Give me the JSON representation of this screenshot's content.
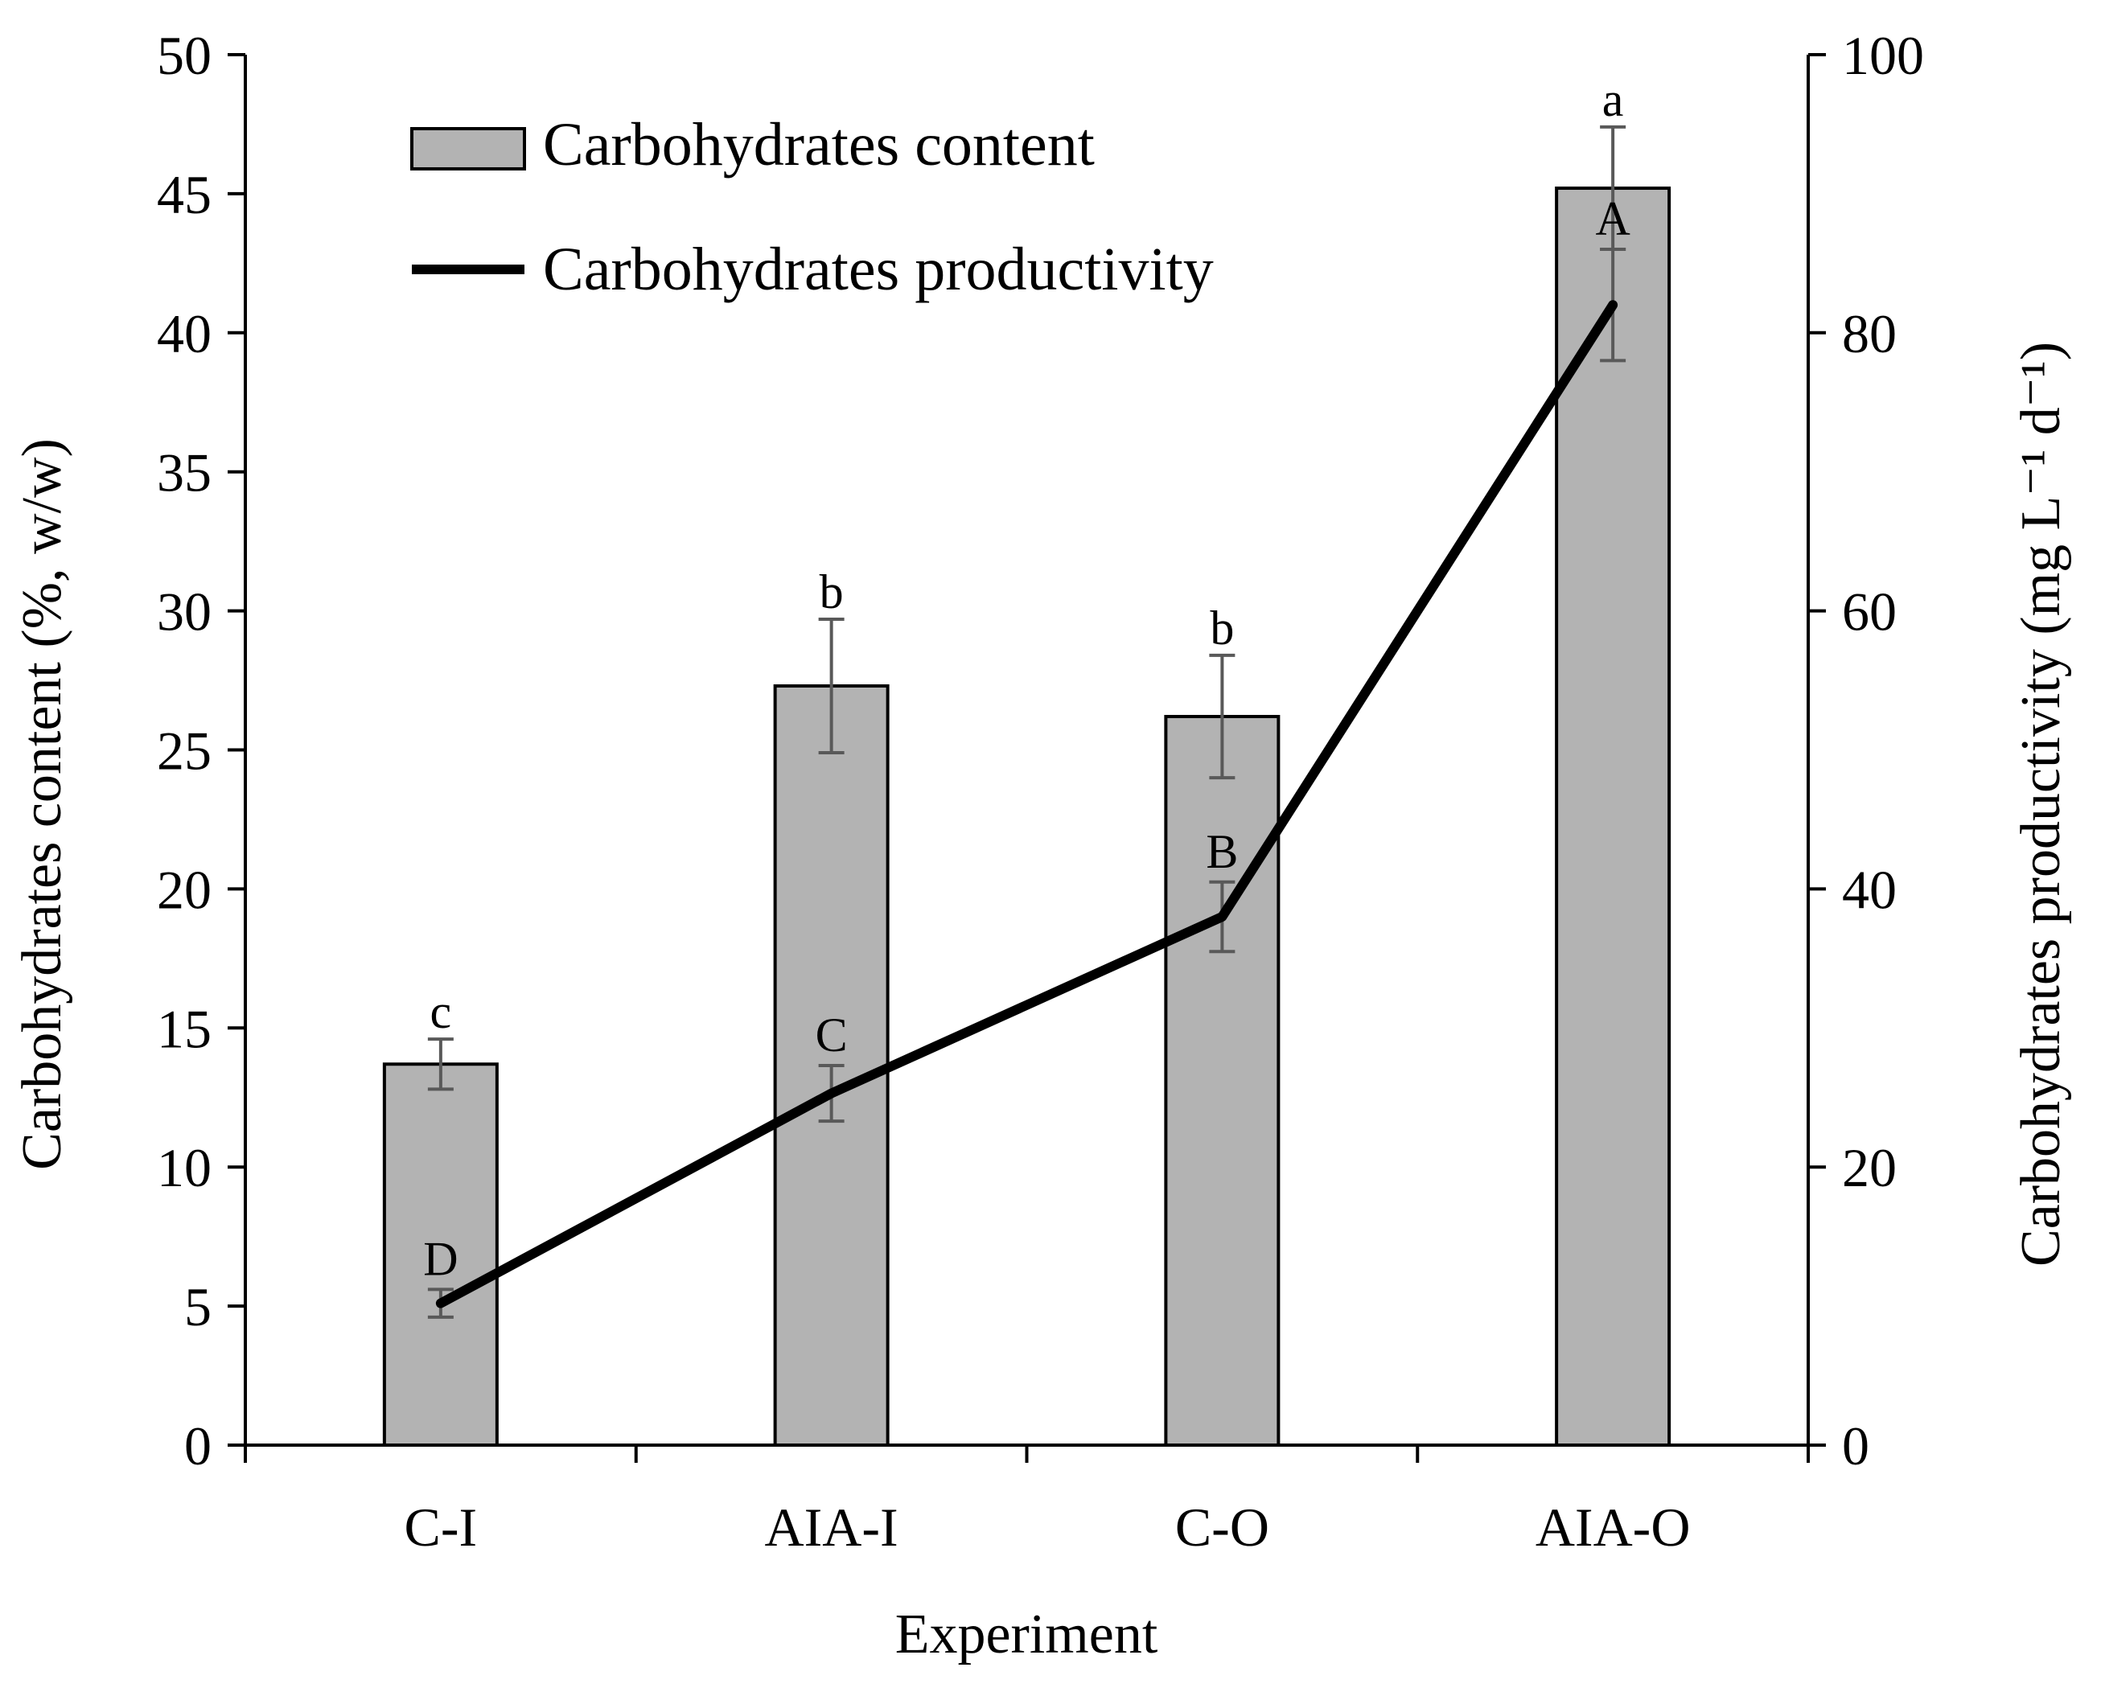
{
  "chart_data": {
    "type": "bar",
    "categories": [
      "C-I",
      "AIA-I",
      "C-O",
      "AIA-O"
    ],
    "xlabel": "Experiment",
    "ylabel": "Carbohydrates content (%, w/w)",
    "y2label": "Carbohydrates  productivity (mg L⁻¹ d⁻¹)",
    "ylim": [
      0,
      50
    ],
    "y2lim": [
      0,
      100
    ],
    "yticks": [
      "0",
      "5",
      "10",
      "15",
      "20",
      "25",
      "30",
      "35",
      "40",
      "45",
      "50"
    ],
    "y2ticks": [
      "0",
      "20",
      "40",
      "60",
      "80",
      "100"
    ],
    "series": [
      {
        "name": "Carbohydrates content",
        "kind": "bar",
        "axis": "left",
        "values": [
          13.7,
          27.3,
          26.2,
          45.2
        ],
        "errors": [
          0.9,
          2.4,
          2.2,
          2.2
        ],
        "labels": [
          "c",
          "b",
          "b",
          "a"
        ]
      },
      {
        "name": "Carbohydrates productivity",
        "kind": "line",
        "axis": "right",
        "values": [
          10.2,
          25.3,
          38.0,
          82.0
        ],
        "errors": [
          1.0,
          2.0,
          2.5,
          4.0
        ],
        "labels": [
          "D",
          "C",
          "B",
          "A"
        ]
      }
    ],
    "colors": {
      "bar_fill": "#b3b3b3",
      "bar_edge": "#000000",
      "line": "#000000",
      "error": "#595959"
    },
    "legend": "top-left"
  }
}
